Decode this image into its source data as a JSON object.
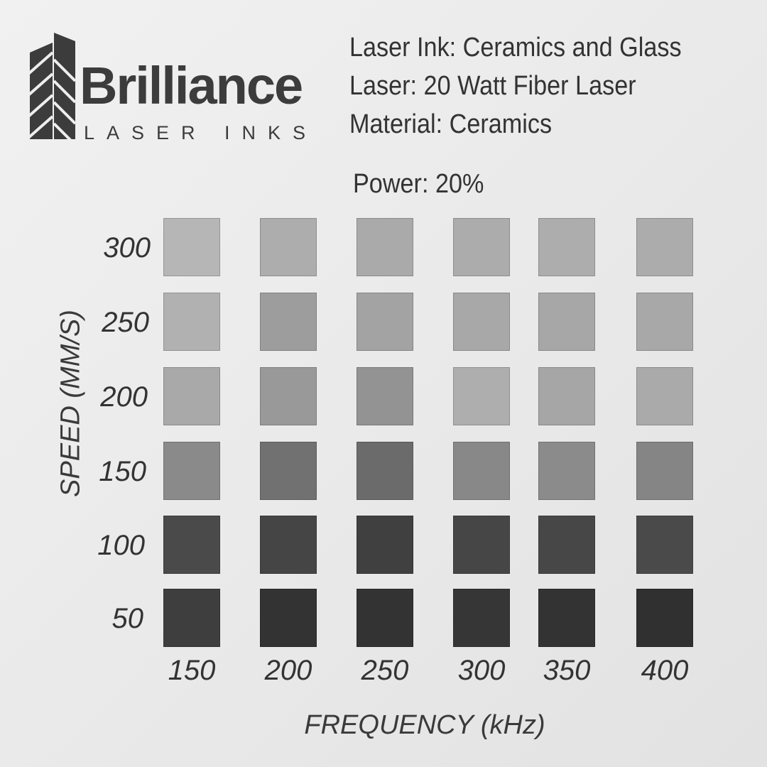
{
  "header": {
    "brand": "Brilliance",
    "brand_subtitle": "LASER INKS",
    "info_lines": [
      "Laser Ink: Ceramics and Glass",
      "Laser: 20 Watt Fiber Laser",
      "Material: Ceramics"
    ],
    "power": "Power: 20%"
  },
  "grid": {
    "y_axis_label": "SPEED (MM/S)",
    "x_axis_label": "FREQUENCY (kHz)",
    "row_labels": [
      300,
      250,
      200,
      150,
      100,
      50
    ],
    "column_labels": [
      150,
      200,
      250,
      300,
      350,
      400
    ],
    "cell_colors": [
      [
        "#b6b6b6",
        "#adadad",
        "#aaaaaa",
        "#acacac",
        "#adadad",
        "#acacac"
      ],
      [
        "#b1b1b1",
        "#9d9d9d",
        "#a3a3a3",
        "#a8a8a8",
        "#a7a7a7",
        "#a8a8a8"
      ],
      [
        "#a9a9a9",
        "#999999",
        "#939393",
        "#aeaeae",
        "#a6a6a6",
        "#aaaaaa"
      ],
      [
        "#8a8a8a",
        "#717171",
        "#6b6b6b",
        "#888888",
        "#8b8b8b",
        "#858585"
      ],
      [
        "#4a4a4a",
        "#454545",
        "#404040",
        "#464646",
        "#474747",
        "#4a4a4a"
      ],
      [
        "#3e3e3e",
        "#333333",
        "#333333",
        "#363636",
        "#333333",
        "#303030"
      ]
    ]
  }
}
